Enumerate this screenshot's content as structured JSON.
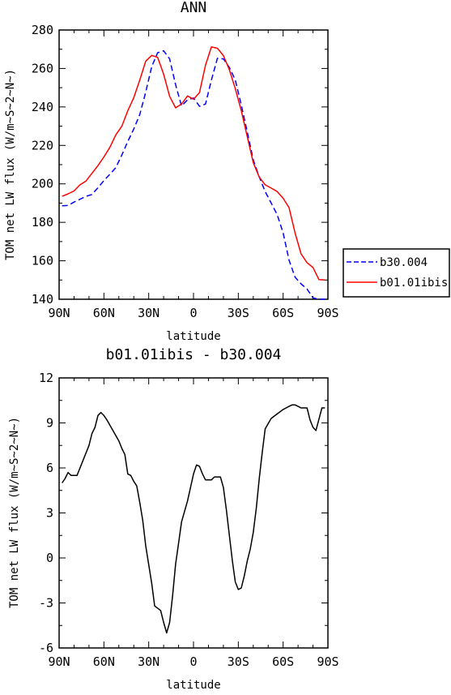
{
  "chart_data": [
    {
      "type": "line",
      "title": "ANN",
      "xlabel": "latitude",
      "ylabel": "TOM net LW flux (W/m~S~2~N~)",
      "x_tick_labels": [
        "90N",
        "60N",
        "30N",
        "0",
        "30S",
        "60S",
        "90S"
      ],
      "x_ticks": [
        -90,
        -60,
        -30,
        0,
        30,
        60,
        90
      ],
      "xlim": [
        -90,
        90
      ],
      "ylim": [
        140,
        280
      ],
      "y_ticks": [
        140,
        160,
        180,
        200,
        220,
        240,
        260,
        280
      ],
      "legend_position": "right-outside",
      "legend": [
        "b30.004",
        "b01.01ibis"
      ],
      "series": [
        {
          "name": "b30.004",
          "style": "dashed",
          "color": "#0000ff",
          "x": [
            -88,
            -84,
            -80,
            -76,
            -72,
            -68,
            -64,
            -60,
            -56,
            -52,
            -48,
            -44,
            -40,
            -36,
            -32,
            -28,
            -24,
            -20,
            -16,
            -12,
            -8,
            -4,
            0,
            4,
            8,
            12,
            16,
            20,
            24,
            28,
            32,
            36,
            40,
            44,
            48,
            52,
            56,
            60,
            64,
            68,
            72,
            76,
            80,
            84,
            88
          ],
          "y": [
            188.6,
            188.8,
            190.5,
            192,
            193.5,
            194.5,
            198,
            201.7,
            205,
            208.5,
            215,
            222,
            228.5,
            236,
            247.8,
            261,
            268.2,
            269.2,
            265,
            251.5,
            240.5,
            243.7,
            244.6,
            240.3,
            241.5,
            254,
            265.3,
            265,
            260.5,
            254,
            241,
            227,
            212.5,
            203.6,
            196,
            190,
            184,
            174.5,
            160.3,
            151.5,
            148,
            145.3,
            140.7,
            140,
            140
          ]
        },
        {
          "name": "b01.01ibis",
          "style": "solid",
          "color": "#ff0000",
          "x": [
            -88,
            -84,
            -80,
            -76,
            -72,
            -68,
            -64,
            -60,
            -56,
            -52,
            -48,
            -44,
            -40,
            -36,
            -32,
            -28,
            -24,
            -20,
            -16,
            -12,
            -8,
            -4,
            0,
            4,
            8,
            12,
            16,
            20,
            24,
            28,
            32,
            36,
            40,
            44,
            48,
            52,
            56,
            60,
            64,
            68,
            72,
            76,
            80,
            84,
            88
          ],
          "y": [
            193.5,
            194.8,
            196.3,
            199.5,
            201.5,
            205.5,
            209.5,
            214,
            219,
            225.5,
            230,
            238,
            244.8,
            254,
            263.8,
            266.8,
            265.8,
            257,
            245.5,
            239.5,
            241.5,
            245.7,
            244,
            247.5,
            261.7,
            271.2,
            270.5,
            266.7,
            259.3,
            249.5,
            238,
            224.5,
            211,
            203.5,
            199.5,
            197.8,
            196,
            192.5,
            187.6,
            174.5,
            163.6,
            159,
            156.5,
            150.2,
            150
          ]
        }
      ]
    },
    {
      "type": "line",
      "title": "b01.01ibis - b30.004",
      "xlabel": "latitude",
      "ylabel": "TOM net LW flux (W/m~S~2~N~)",
      "x_tick_labels": [
        "90N",
        "60N",
        "30N",
        "0",
        "30S",
        "60S",
        "90S"
      ],
      "x_ticks": [
        -90,
        -60,
        -30,
        0,
        30,
        60,
        90
      ],
      "xlim": [
        -90,
        90
      ],
      "ylim": [
        -6,
        12
      ],
      "y_ticks": [
        -6,
        -3,
        0,
        3,
        6,
        9,
        12
      ],
      "series": [
        {
          "style": "solid",
          "color": "#000000",
          "x": [
            -88,
            -86,
            -84,
            -82,
            -78,
            -74,
            -70,
            -68,
            -66,
            -64,
            -62,
            -60,
            -58,
            -54,
            -50,
            -48,
            -46,
            -44,
            -42,
            -40,
            -38,
            -36,
            -34,
            -32,
            -28,
            -26,
            -22,
            -20,
            -18,
            -16,
            -14,
            -12,
            -10,
            -8,
            -4,
            0,
            2,
            4,
            6,
            8,
            10,
            12,
            14,
            16,
            18,
            20,
            22,
            24,
            26,
            28,
            30,
            32,
            34,
            36,
            38,
            40,
            42,
            44,
            46,
            48,
            52,
            56,
            60,
            62,
            64,
            66,
            68,
            70,
            72,
            74,
            76,
            78,
            80,
            82,
            86,
            88
          ],
          "y": [
            5,
            5.3,
            5.7,
            5.5,
            5.5,
            6.5,
            7.5,
            8.3,
            8.7,
            9.5,
            9.7,
            9.5,
            9.2,
            8.5,
            7.8,
            7.3,
            6.9,
            5.6,
            5.5,
            5.1,
            4.8,
            3.7,
            2.5,
            0.8,
            -1.7,
            -3.2,
            -3.5,
            -4.3,
            -5,
            -4.3,
            -2.5,
            -0.4,
            1,
            2.4,
            3.8,
            5.6,
            6.2,
            6.1,
            5.6,
            5.2,
            5.2,
            5.2,
            5.4,
            5.4,
            5.4,
            4.7,
            3.2,
            1.5,
            -0.2,
            -1.6,
            -2.1,
            -2,
            -1.2,
            -0.2,
            0.6,
            1.7,
            3.3,
            5.3,
            7,
            8.6,
            9.3,
            9.6,
            9.9,
            10,
            10.1,
            10.2,
            10.2,
            10.1,
            10,
            10,
            10,
            9.2,
            8.7,
            8.5,
            10,
            10
          ]
        }
      ]
    }
  ]
}
